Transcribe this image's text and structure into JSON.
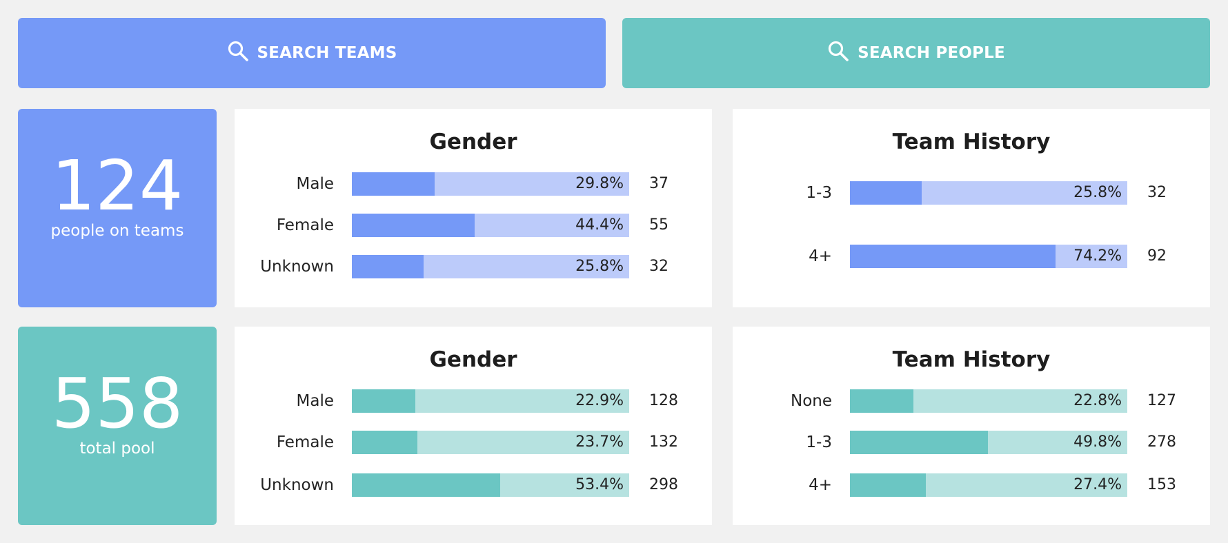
{
  "colors": {
    "blue_accent": "#7599f7",
    "blue_light": "#bccbfa",
    "teal_accent": "#6bc6c3",
    "teal_light": "#b6e2e0"
  },
  "buttons": {
    "search_teams": {
      "label": "SEARCH TEAMS",
      "icon": "search-icon"
    },
    "search_people": {
      "label": "SEARCH PEOPLE",
      "icon": "search-icon"
    }
  },
  "teams_section": {
    "stat": {
      "value": "124",
      "label": "people on teams"
    },
    "gender": {
      "title": "Gender",
      "rows": [
        {
          "label": "Male",
          "percent": 29.8,
          "percent_text": "29.8%",
          "count": "37"
        },
        {
          "label": "Female",
          "percent": 44.4,
          "percent_text": "44.4%",
          "count": "55"
        },
        {
          "label": "Unknown",
          "percent": 25.8,
          "percent_text": "25.8%",
          "count": "32"
        }
      ]
    },
    "history": {
      "title": "Team History",
      "rows": [
        {
          "label": "1-3",
          "percent": 25.8,
          "percent_text": "25.8%",
          "count": "32"
        },
        {
          "label": "4+",
          "percent": 74.2,
          "percent_text": "74.2%",
          "count": "92"
        }
      ]
    }
  },
  "pool_section": {
    "stat": {
      "value": "558",
      "label": "total pool"
    },
    "gender": {
      "title": "Gender",
      "rows": [
        {
          "label": "Male",
          "percent": 22.9,
          "percent_text": "22.9%",
          "count": "128"
        },
        {
          "label": "Female",
          "percent": 23.7,
          "percent_text": "23.7%",
          "count": "132"
        },
        {
          "label": "Unknown",
          "percent": 53.4,
          "percent_text": "53.4%",
          "count": "298"
        }
      ]
    },
    "history": {
      "title": "Team History",
      "rows": [
        {
          "label": "None",
          "percent": 22.8,
          "percent_text": "22.8%",
          "count": "127"
        },
        {
          "label": "1-3",
          "percent": 49.8,
          "percent_text": "49.8%",
          "count": "278"
        },
        {
          "label": "4+",
          "percent": 27.4,
          "percent_text": "27.4%",
          "count": "153"
        }
      ]
    }
  }
}
